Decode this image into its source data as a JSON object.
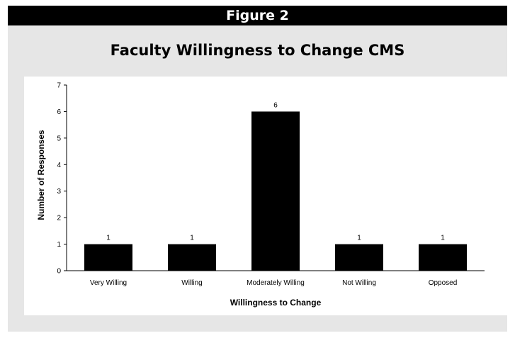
{
  "header": {
    "label": "Figure 2"
  },
  "chart_data": {
    "type": "bar",
    "title": "Faculty Willingness to Change CMS",
    "xlabel": "Willingness to Change",
    "ylabel": "Number of Responses",
    "categories": [
      "Very Willing",
      "Willing",
      "Moderately Willing",
      "Not Willing",
      "Opposed"
    ],
    "values": [
      1,
      1,
      6,
      1,
      1
    ],
    "data_labels": [
      "1",
      "1",
      "6",
      "1",
      "1"
    ],
    "yticks": [
      "0",
      "1",
      "2",
      "3",
      "4",
      "5",
      "6",
      "7"
    ],
    "ylim": [
      0,
      7
    ],
    "grid": false,
    "legend": "none",
    "bar_color": "#000000"
  }
}
